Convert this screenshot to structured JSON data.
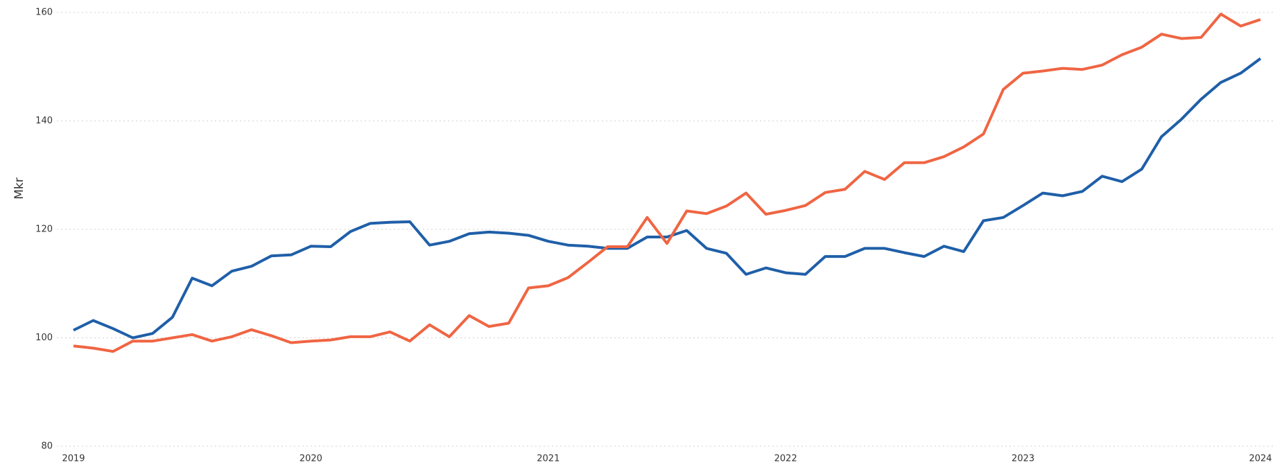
{
  "chart_data": {
    "type": "line",
    "y_label": "Mkr",
    "categories": [
      "2019",
      null,
      null,
      null,
      null,
      null,
      null,
      null,
      null,
      null,
      null,
      null,
      "2020",
      null,
      null,
      null,
      null,
      null,
      null,
      null,
      null,
      null,
      null,
      null,
      "2021",
      null,
      null,
      null,
      null,
      null,
      null,
      null,
      null,
      null,
      null,
      null,
      "2022",
      null,
      null,
      null,
      null,
      null,
      null,
      null,
      null,
      null,
      null,
      null,
      "2023",
      null,
      null,
      null,
      null,
      null,
      null,
      null,
      null,
      null,
      null,
      null,
      "2024"
    ],
    "series": [
      {
        "color": "#1f5fa8",
        "values": [
          101.4,
          103.2,
          101.7,
          100.0,
          100.8,
          103.8,
          111.0,
          109.6,
          112.3,
          113.2,
          115.1,
          115.3,
          116.9,
          116.8,
          119.6,
          121.1,
          121.3,
          121.4,
          117.1,
          117.8,
          119.2,
          119.5,
          119.3,
          118.9,
          117.8,
          117.1,
          116.9,
          116.5,
          116.5,
          118.6,
          118.6,
          119.8,
          116.5,
          115.6,
          111.7,
          112.9,
          112.0,
          111.7,
          115.0,
          115.0,
          116.5,
          116.5,
          115.7,
          115.0,
          116.9,
          115.9,
          121.6,
          122.2,
          124.4,
          126.7,
          126.2,
          127.0,
          129.8,
          128.8,
          131.1,
          137.1,
          140.3,
          144.0,
          147.1,
          148.8,
          151.5
        ]
      },
      {
        "color": "#f06543",
        "values": [
          98.5,
          98.1,
          97.5,
          99.4,
          99.4,
          100.0,
          100.6,
          99.4,
          100.2,
          101.5,
          100.4,
          99.1,
          99.4,
          99.6,
          100.2,
          100.2,
          101.1,
          99.4,
          102.4,
          100.2,
          104.1,
          102.1,
          102.7,
          109.2,
          109.6,
          111.1,
          113.9,
          116.8,
          116.8,
          122.2,
          117.4,
          123.4,
          122.9,
          124.3,
          126.7,
          122.8,
          123.5,
          124.4,
          126.8,
          127.4,
          130.7,
          129.2,
          132.3,
          132.3,
          133.4,
          135.2,
          137.6,
          145.8,
          148.8,
          149.2,
          149.7,
          149.5,
          150.3,
          152.2,
          153.6,
          156.0,
          155.2,
          155.4,
          159.7,
          157.5,
          158.7
        ]
      }
    ],
    "ylim": [
      80,
      160
    ],
    "yticks": [
      80,
      100,
      120,
      140,
      160
    ],
    "grid": true
  }
}
